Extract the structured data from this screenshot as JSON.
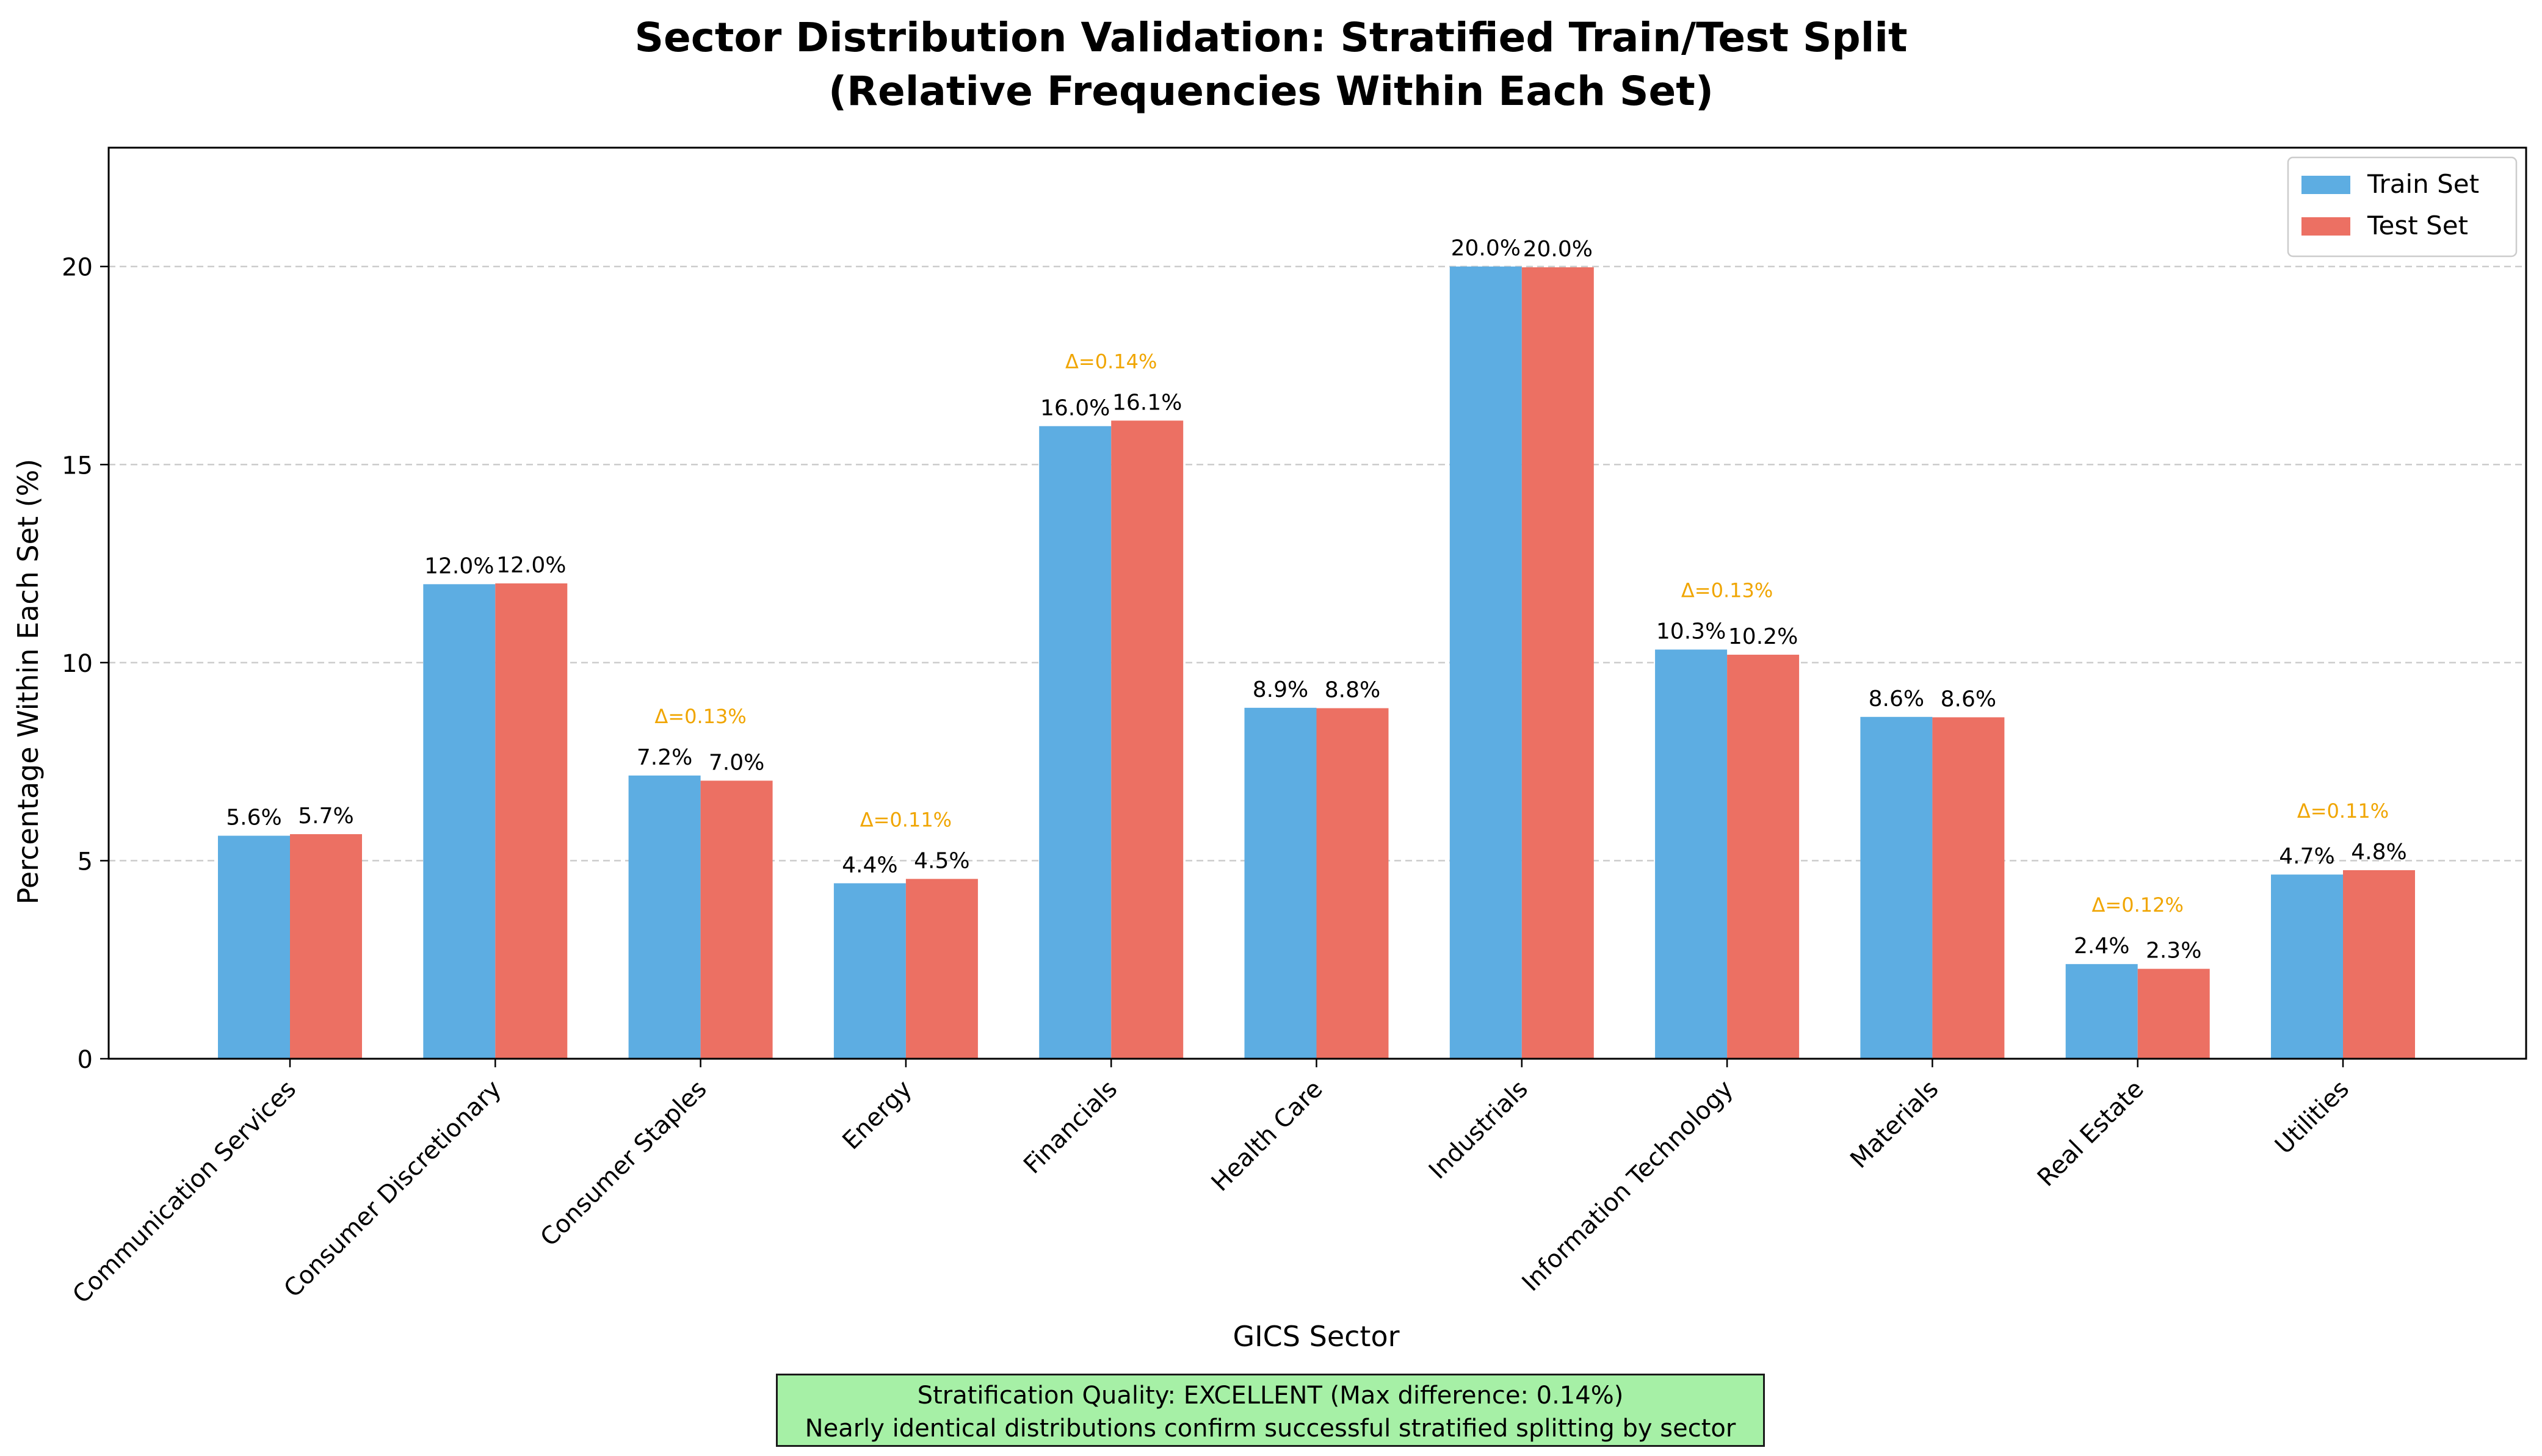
{
  "title": {
    "line1": "Sector Distribution Validation: Stratified Train/Test Split",
    "line2": "(Relative Frequencies Within Each Set)"
  },
  "chart_data": {
    "type": "bar",
    "title": "Sector Distribution Validation: Stratified Train/Test Split (Relative Frequencies Within Each Set)",
    "xlabel": "GICS Sector",
    "ylabel": "Percentage Within Each Set (%)",
    "ylim": [
      0,
      23
    ],
    "yticks": [
      0,
      5,
      10,
      15,
      20
    ],
    "grid": "y-dashed",
    "legend_position": "top-right",
    "categories": [
      "Communication Services",
      "Consumer Discretionary",
      "Consumer Staples",
      "Energy",
      "Financials",
      "Health Care",
      "Industrials",
      "Information Technology",
      "Materials",
      "Real Estate",
      "Utilities"
    ],
    "series": [
      {
        "name": "Train Set",
        "color": "#5dade2",
        "values": [
          5.63,
          11.98,
          7.15,
          4.43,
          15.97,
          8.86,
          20.0,
          10.33,
          8.63,
          2.39,
          4.65
        ],
        "labels": [
          "5.6%",
          "12.0%",
          "7.2%",
          "4.4%",
          "16.0%",
          "8.9%",
          "20.0%",
          "10.3%",
          "8.6%",
          "2.4%",
          "4.7%"
        ]
      },
      {
        "name": "Test Set",
        "color": "#ec7063",
        "values": [
          5.67,
          12.0,
          7.02,
          4.54,
          16.11,
          8.85,
          19.98,
          10.2,
          8.62,
          2.27,
          4.76
        ],
        "labels": [
          "5.7%",
          "12.0%",
          "7.0%",
          "4.5%",
          "16.1%",
          "8.8%",
          "20.0%",
          "10.2%",
          "8.6%",
          "2.3%",
          "4.8%"
        ]
      }
    ],
    "annotations": [
      {
        "category": "Consumer Staples",
        "text": "Δ=0.13%",
        "color": "#f0a500"
      },
      {
        "category": "Energy",
        "text": "Δ=0.11%",
        "color": "#f0a500"
      },
      {
        "category": "Financials",
        "text": "Δ=0.14%",
        "color": "#f0a500"
      },
      {
        "category": "Information Technology",
        "text": "Δ=0.13%",
        "color": "#f0a500"
      },
      {
        "category": "Real Estate",
        "text": "Δ=0.12%",
        "color": "#f0a500"
      },
      {
        "category": "Utilities",
        "text": "Δ=0.11%",
        "color": "#f0a500"
      }
    ]
  },
  "quality_box": {
    "line1": "Stratification Quality: EXCELLENT (Max difference: 0.14%)",
    "line2": "Nearly identical distributions confirm successful stratified splitting by sector",
    "color": "#a6f0a6"
  }
}
